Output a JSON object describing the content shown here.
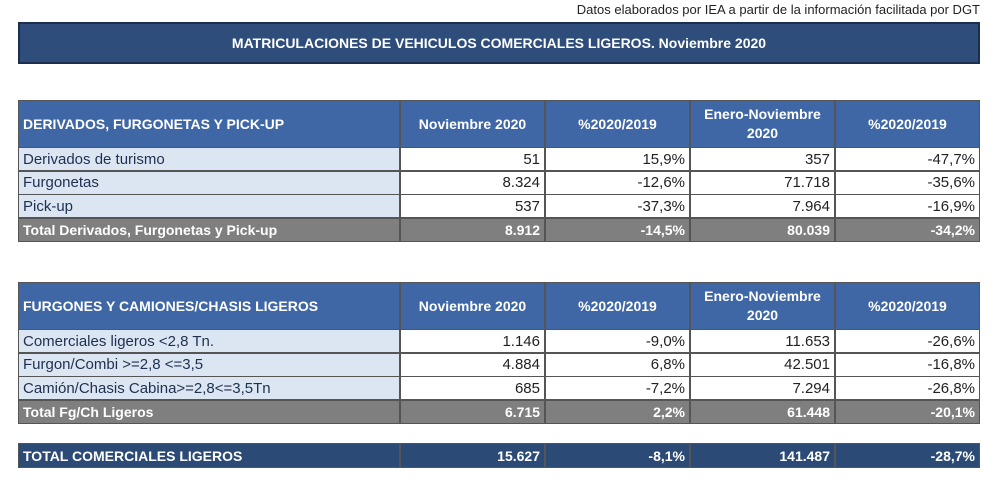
{
  "source_note": "Datos elaborados por IEA a partir de la información facilitada por DGT",
  "title": "MATRICULACIONES DE VEHICULOS COMERCIALES LIGEROS. Noviembre 2020",
  "tables": [
    {
      "headers": [
        "DERIVADOS, FURGONETAS Y PICK-UP",
        "Noviembre 2020",
        "%2020/2019",
        "Enero-Noviembre 2020",
        "%2020/2019"
      ],
      "rows": [
        [
          "Derivados de turismo",
          "51",
          "15,9%",
          "357",
          "-47,7%"
        ],
        [
          "Furgonetas",
          "8.324",
          "-12,6%",
          "71.718",
          "-35,6%"
        ],
        [
          "Pick-up",
          "537",
          "-37,3%",
          "7.964",
          "-16,9%"
        ]
      ],
      "total": [
        "Total Derivados, Furgonetas y Pick-up",
        "8.912",
        "-14,5%",
        "80.039",
        "-34,2%"
      ]
    },
    {
      "headers": [
        "FURGONES Y CAMIONES/CHASIS LIGEROS",
        "Noviembre 2020",
        "%2020/2019",
        "Enero-Noviembre 2020",
        "%2020/2019"
      ],
      "rows": [
        [
          "Comerciales ligeros <2,8 Tn.",
          "1.146",
          "-9,0%",
          "11.653",
          "-26,6%"
        ],
        [
          "Furgon/Combi >=2,8 <=3,5",
          "4.884",
          "6,8%",
          "42.501",
          "-16,8%"
        ],
        [
          "Camión/Chasis Cabina>=2,8<=3,5Tn",
          "685",
          "-7,2%",
          "7.294",
          "-26,8%"
        ]
      ],
      "total": [
        "Total Fg/Ch Ligeros",
        "6.715",
        "2,2%",
        "61.448",
        "-20,1%"
      ]
    }
  ],
  "grand_total": [
    "TOTAL COMERCIALES LIGEROS",
    "15.627",
    "-8,1%",
    "141.487",
    "-28,7%"
  ]
}
